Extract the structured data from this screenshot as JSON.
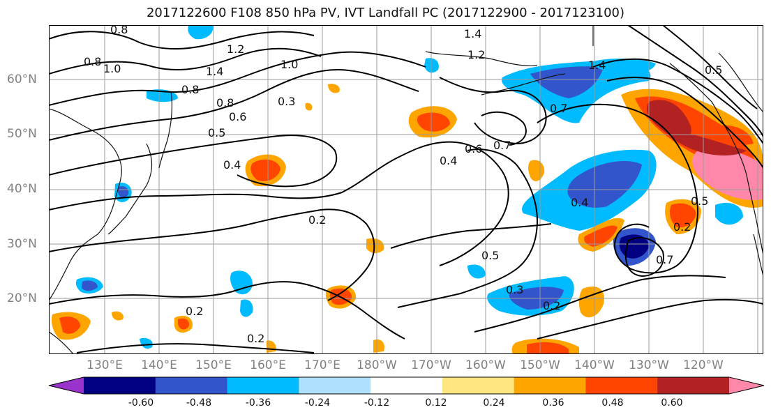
{
  "title": "2017122600 F108 850 hPa PV, IVT Landfall PC (2017122900 - 2017123100)",
  "lat_labels": [
    "60°N",
    "50°N",
    "40°N",
    "30°N",
    "20°N"
  ],
  "lon_labels": [
    "130°E",
    "140°E",
    "150°E",
    "160°E",
    "170°E",
    "180°W",
    "170°W",
    "160°W",
    "150°W",
    "140°W",
    "130°W",
    "120°W"
  ],
  "colorbar": {
    "colors": [
      "#9933cc",
      "#000080",
      "#3355cc",
      "#00bbff",
      "#b0e0ff",
      "#ffffff",
      "#ffe680",
      "#ffa500",
      "#ff4500",
      "#b22222",
      "#ff88aa"
    ],
    "tick_labels": [
      "-0.60",
      "-0.48",
      "-0.36",
      "-0.24",
      "-0.12",
      "0.12",
      "0.24",
      "0.36",
      "0.48",
      "0.60"
    ]
  },
  "contour_labels": [
    "0.8",
    "0.8",
    "1.0",
    "1.2",
    "1.4",
    "1.0",
    "0.8",
    "0.8",
    "0.6",
    "0.5",
    "0.3",
    "1.4",
    "1.2",
    "1.4",
    "0.4",
    "0.2",
    "0.2",
    "0.2",
    "0.6",
    "0.7",
    "0.4",
    "0.5",
    "0.3",
    "0.2",
    "0.4",
    "0.5",
    "0.7",
    "0.5",
    "0.7",
    "0.2"
  ]
}
